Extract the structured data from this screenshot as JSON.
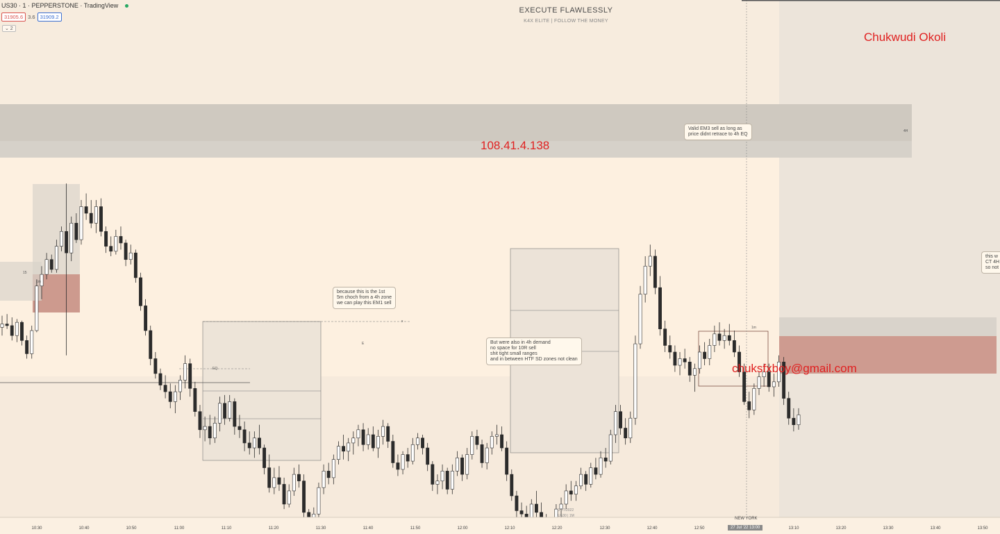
{
  "header": {
    "symbol": "US30 · 1 · PEPPERSTONE · TradingView",
    "sell_price": "31905.6",
    "spread": "3.6",
    "buy_price": "31909.2",
    "collapse_label": "⌄ 2"
  },
  "brand": {
    "title": "EXECUTE FLAWLESSLY",
    "subtitle": "K4X ELITE | FOLLOW THE MONEY"
  },
  "overlays": {
    "name": "Chukwudi Okoli",
    "ip": "108.41.4.138",
    "email": "chuksfxboy@gmail.com"
  },
  "notes": {
    "valid_em3": "Valid EM3 sell as long as\nprice didnt retrace to 4h EQ",
    "first_choch": "because this is the 1st\n5m choch from a 4h zone\nwe can play this EM1 sell",
    "demand": "But were also in 4h demand\nno space for 10R sell\nshit tight small ranges\nand in between HTF SD zones not clean",
    "right_cut": "this w\nCT 4H\nso not"
  },
  "small_labels": {
    "zone_15": "15",
    "zone_1m_left": "1m",
    "zone_1m_right": "1m",
    "eq_label": "EQ",
    "watermark_date": "27/7/2022",
    "watermark_sym": "US30 | 1M",
    "tf_tag": "4H",
    "x_marker": "x",
    "marker_e": "E"
  },
  "x_axis": {
    "ticks": [
      "10:30",
      "10:40",
      "10:50",
      "11:00",
      "11:10",
      "11:20",
      "11:30",
      "11:40",
      "11:50",
      "12:00",
      "12:10",
      "12:20",
      "12:30",
      "12:40",
      "12:50",
      "13:10",
      "13:20",
      "13:30",
      "13:40",
      "13:50"
    ],
    "highlight": "27 Jul '22  13:00",
    "session": "NEW YORK"
  },
  "colors": {
    "background": "#fdf0e0",
    "candle_up": "#ffffff",
    "candle_down": "#2b2b2b",
    "supply_zone": "#c98e82",
    "grey_zone": "#d5d0c8",
    "overlay_text": "#e02020"
  },
  "chart_data": {
    "type": "candlestick",
    "symbol": "US30",
    "interval": "1m",
    "x_start": "10:26",
    "x_end": "13:09",
    "y_range": [
      31770,
      32020
    ],
    "candles_ohlc": [
      [
        31885,
        31892,
        31880,
        31887
      ],
      [
        31887,
        31893,
        31884,
        31886
      ],
      [
        31886,
        31891,
        31877,
        31880
      ],
      [
        31880,
        31890,
        31876,
        31888
      ],
      [
        31888,
        31889,
        31874,
        31877
      ],
      [
        31877,
        31880,
        31866,
        31869
      ],
      [
        31869,
        31886,
        31866,
        31883
      ],
      [
        31883,
        31914,
        31882,
        31910
      ],
      [
        31910,
        31922,
        31902,
        31917
      ],
      [
        31917,
        31930,
        31914,
        31926
      ],
      [
        31926,
        31929,
        31918,
        31920
      ],
      [
        31920,
        31938,
        31918,
        31934
      ],
      [
        31934,
        31946,
        31931,
        31943
      ],
      [
        31943,
        31972,
        31868,
        31930
      ],
      [
        31930,
        31952,
        31925,
        31948
      ],
      [
        31948,
        31954,
        31936,
        31938
      ],
      [
        31938,
        31962,
        31935,
        31958
      ],
      [
        31958,
        31966,
        31950,
        31954
      ],
      [
        31954,
        31962,
        31945,
        31948
      ],
      [
        31948,
        31962,
        31942,
        31958
      ],
      [
        31958,
        31963,
        31940,
        31943
      ],
      [
        31943,
        31946,
        31930,
        31934
      ],
      [
        31934,
        31940,
        31928,
        31931
      ],
      [
        31931,
        31944,
        31929,
        31940
      ],
      [
        31940,
        31946,
        31932,
        31936
      ],
      [
        31936,
        31938,
        31922,
        31926
      ],
      [
        31926,
        31935,
        31923,
        31930
      ],
      [
        31930,
        31932,
        31912,
        31915
      ],
      [
        31915,
        31918,
        31895,
        31898
      ],
      [
        31898,
        31902,
        31880,
        31883
      ],
      [
        31883,
        31886,
        31862,
        31866
      ],
      [
        31866,
        31870,
        31854,
        31857
      ],
      [
        31857,
        31860,
        31847,
        31850
      ],
      [
        31850,
        31856,
        31842,
        31846
      ],
      [
        31846,
        31851,
        31836,
        31840
      ],
      [
        31840,
        31850,
        31833,
        31846
      ],
      [
        31846,
        31856,
        31841,
        31853
      ],
      [
        31853,
        31868,
        31848,
        31863
      ],
      [
        31863,
        31866,
        31843,
        31848
      ],
      [
        31848,
        31852,
        31831,
        31834
      ],
      [
        31834,
        31838,
        31818,
        31823
      ],
      [
        31823,
        31831,
        31816,
        31825
      ],
      [
        31825,
        31832,
        31814,
        31818
      ],
      [
        31818,
        31831,
        31815,
        31827
      ],
      [
        31827,
        31843,
        31822,
        31839
      ],
      [
        31839,
        31844,
        31826,
        31830
      ],
      [
        31830,
        31844,
        31828,
        31840
      ],
      [
        31840,
        31842,
        31820,
        31825
      ],
      [
        31825,
        31832,
        31818,
        31823
      ],
      [
        31823,
        31828,
        31810,
        31815
      ],
      [
        31815,
        31822,
        31808,
        31812
      ],
      [
        31812,
        31822,
        31806,
        31818
      ],
      [
        31818,
        31826,
        31808,
        31812
      ],
      [
        31812,
        31814,
        31796,
        31800
      ],
      [
        31800,
        31808,
        31785,
        31788
      ],
      [
        31788,
        31800,
        31784,
        31794
      ],
      [
        31794,
        31801,
        31786,
        31790
      ],
      [
        31790,
        31794,
        31775,
        31778
      ],
      [
        31778,
        31790,
        31776,
        31786
      ],
      [
        31786,
        31800,
        31783,
        31796
      ],
      [
        31796,
        31802,
        31788,
        31792
      ],
      [
        31792,
        31796,
        31770,
        31773
      ],
      [
        31773,
        31775,
        31755,
        31758
      ],
      [
        31758,
        31776,
        31755,
        31772
      ],
      [
        31772,
        31791,
        31770,
        31788
      ],
      [
        31788,
        31802,
        31784,
        31798
      ],
      [
        31798,
        31803,
        31790,
        31794
      ],
      [
        31794,
        31808,
        31790,
        31805
      ],
      [
        31805,
        31816,
        31802,
        31813
      ],
      [
        31813,
        31820,
        31805,
        31810
      ],
      [
        31810,
        31818,
        31804,
        31815
      ],
      [
        31815,
        31822,
        31808,
        31818
      ],
      [
        31818,
        31826,
        31813,
        31823
      ],
      [
        31823,
        31827,
        31810,
        31814
      ],
      [
        31814,
        31824,
        31811,
        31820
      ],
      [
        31820,
        31825,
        31810,
        31812
      ],
      [
        31812,
        31823,
        31806,
        31819
      ],
      [
        31819,
        31829,
        31814,
        31825
      ],
      [
        31825,
        31827,
        31812,
        31816
      ],
      [
        31816,
        31820,
        31800,
        31803
      ],
      [
        31803,
        31808,
        31795,
        31799
      ],
      [
        31799,
        31810,
        31796,
        31808
      ],
      [
        31808,
        31812,
        31800,
        31804
      ],
      [
        31804,
        31818,
        31802,
        31814
      ],
      [
        31814,
        31821,
        31811,
        31818
      ],
      [
        31818,
        31820,
        31808,
        31812
      ],
      [
        31812,
        31815,
        31798,
        31802
      ],
      [
        31802,
        31804,
        31786,
        31790
      ],
      [
        31790,
        31796,
        31784,
        31792
      ],
      [
        31792,
        31802,
        31787,
        31798
      ],
      [
        31798,
        31800,
        31784,
        31787
      ],
      [
        31787,
        31802,
        31784,
        31798
      ],
      [
        31798,
        31810,
        31795,
        31806
      ],
      [
        31806,
        31808,
        31792,
        31796
      ],
      [
        31796,
        31812,
        31793,
        31808
      ],
      [
        31808,
        31822,
        31805,
        31819
      ],
      [
        31819,
        31823,
        31811,
        31814
      ],
      [
        31814,
        31817,
        31800,
        31803
      ],
      [
        31803,
        31815,
        31799,
        31812
      ],
      [
        31812,
        31822,
        31808,
        31819
      ],
      [
        31819,
        31826,
        31814,
        31820
      ],
      [
        31820,
        31825,
        31810,
        31812
      ],
      [
        31812,
        31816,
        31792,
        31796
      ],
      [
        31796,
        31799,
        31780,
        31783
      ],
      [
        31783,
        31786,
        31770,
        31774
      ],
      [
        31774,
        31779,
        31768,
        31772
      ],
      [
        31772,
        31777,
        31762,
        31766
      ],
      [
        31766,
        31781,
        31763,
        31778
      ],
      [
        31778,
        31786,
        31770,
        31773
      ],
      [
        31773,
        31779,
        31764,
        31768
      ],
      [
        31768,
        31772,
        31758,
        31762
      ],
      [
        31762,
        31768,
        31754,
        31766
      ],
      [
        31766,
        31778,
        31762,
        31775
      ],
      [
        31775,
        31782,
        31770,
        31778
      ],
      [
        31778,
        31790,
        31775,
        31786
      ],
      [
        31786,
        31792,
        31780,
        31784
      ],
      [
        31784,
        31792,
        31780,
        31789
      ],
      [
        31789,
        31800,
        31787,
        31796
      ],
      [
        31796,
        31798,
        31786,
        31790
      ],
      [
        31790,
        31803,
        31788,
        31800
      ],
      [
        31800,
        31806,
        31793,
        31796
      ],
      [
        31796,
        31810,
        31794,
        31806
      ],
      [
        31806,
        31812,
        31800,
        31804
      ],
      [
        31804,
        31823,
        31802,
        31820
      ],
      [
        31820,
        31838,
        31815,
        31834
      ],
      [
        31834,
        31838,
        31820,
        31824
      ],
      [
        31824,
        31830,
        31814,
        31818
      ],
      [
        31818,
        31834,
        31815,
        31830
      ],
      [
        31830,
        31880,
        31826,
        31875
      ],
      [
        31875,
        31910,
        31872,
        31905
      ],
      [
        31905,
        31928,
        31900,
        31922
      ],
      [
        31922,
        31935,
        31916,
        31928
      ],
      [
        31928,
        31932,
        31905,
        31909
      ],
      [
        31909,
        31916,
        31880,
        31884
      ],
      [
        31884,
        31889,
        31870,
        31874
      ],
      [
        31874,
        31880,
        31866,
        31870
      ],
      [
        31870,
        31874,
        31858,
        31862
      ],
      [
        31862,
        31870,
        31856,
        31866
      ],
      [
        31866,
        31872,
        31860,
        31864
      ],
      [
        31864,
        31867,
        31852,
        31856
      ],
      [
        31856,
        31863,
        31846,
        31860
      ],
      [
        31860,
        31874,
        31857,
        31870
      ],
      [
        31870,
        31876,
        31862,
        31866
      ],
      [
        31866,
        31878,
        31862,
        31874
      ],
      [
        31874,
        31886,
        31870,
        31881
      ],
      [
        31881,
        31888,
        31874,
        31877
      ],
      [
        31877,
        31884,
        31872,
        31880
      ],
      [
        31880,
        31887,
        31874,
        31877
      ],
      [
        31877,
        31883,
        31867,
        31870
      ],
      [
        31870,
        31874,
        31855,
        31858
      ],
      [
        31858,
        31863,
        31838,
        31840
      ],
      [
        31840,
        31846,
        31830,
        31835
      ],
      [
        31835,
        31851,
        31832,
        31848
      ],
      [
        31848,
        31858,
        31844,
        31855
      ],
      [
        31855,
        31863,
        31849,
        31858
      ],
      [
        31858,
        31863,
        31846,
        31849
      ],
      [
        31849,
        31857,
        31843,
        31852
      ],
      [
        31852,
        31868,
        31849,
        31864
      ],
      [
        31864,
        31867,
        31838,
        31842
      ],
      [
        31842,
        31846,
        31826,
        31830
      ],
      [
        31830,
        31836,
        31822,
        31826
      ],
      [
        31826,
        31836,
        31823,
        31832
      ]
    ],
    "zones": [
      {
        "label": "4H supply zone",
        "low": 31966,
        "high": 31992
      },
      {
        "label": "EQ",
        "low": 31966,
        "high": 31974
      }
    ],
    "annotations": [
      "Valid EM3 sell as long as price didnt retrace to 4h EQ",
      "because this is the 1st 5m choch from a 4h zone we can play this EM1 sell",
      "But were also in 4h demand no space for 10R sell shit tight small ranges and in between HTF SD zones not clean"
    ]
  }
}
